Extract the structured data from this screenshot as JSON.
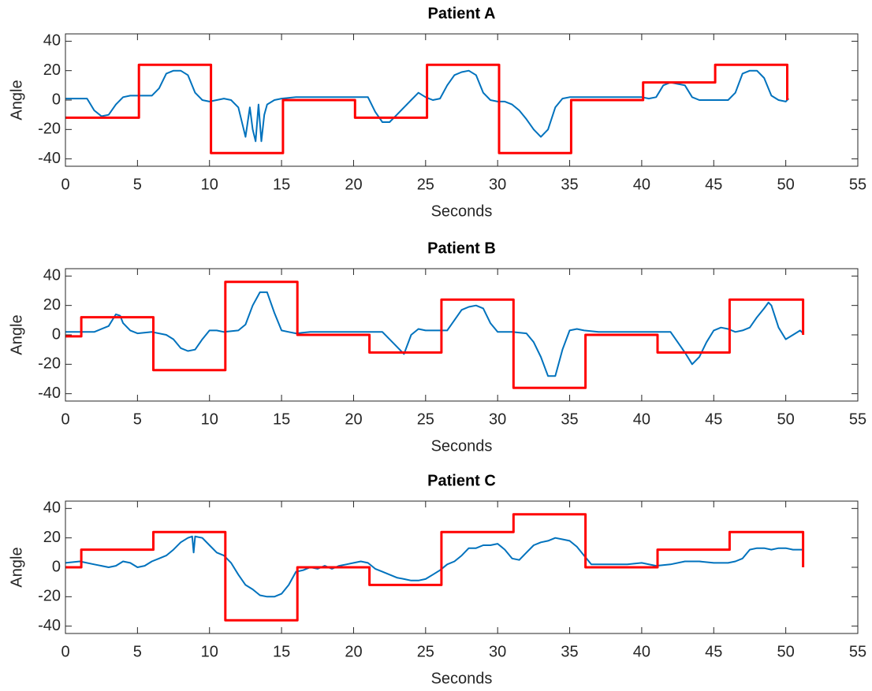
{
  "chart_data": [
    {
      "type": "line",
      "title": "Patient A",
      "xlabel": "Seconds",
      "ylabel": "Angle",
      "xlim": [
        0,
        55
      ],
      "ylim": [
        -45,
        45
      ],
      "xticks": [
        0,
        5,
        10,
        15,
        20,
        25,
        30,
        35,
        40,
        45,
        50,
        55
      ],
      "yticks": [
        -40,
        -20,
        0,
        20,
        40
      ],
      "series": [
        {
          "color": "#0072bd",
          "x": [
            0,
            0.5,
            1,
            1.5,
            2,
            2.5,
            3,
            3.5,
            4,
            4.5,
            5,
            5.5,
            6,
            6.5,
            7,
            7.5,
            8,
            8.5,
            9,
            9.5,
            10,
            10.5,
            11,
            11.5,
            12,
            12.5,
            12.8,
            13,
            13.2,
            13.4,
            13.6,
            13.8,
            14,
            14.5,
            15,
            16,
            17,
            18,
            19,
            20,
            21,
            21.5,
            22,
            22.5,
            23,
            23.5,
            24,
            24.5,
            25,
            25.5,
            26,
            26.5,
            27,
            27.5,
            28,
            28.5,
            29,
            29.5,
            30,
            30.5,
            31,
            31.5,
            32,
            32.5,
            33,
            33.5,
            34,
            34.5,
            35,
            36,
            37,
            38,
            39,
            40,
            40.5,
            41,
            41.5,
            42,
            42.5,
            43,
            43.5,
            44,
            45,
            46,
            46.5,
            47,
            47.5,
            48,
            48.5,
            49,
            49.5,
            50,
            50.2
          ],
          "values": [
            1,
            1,
            1,
            1,
            -7,
            -11,
            -10,
            -3,
            2,
            3,
            3,
            3,
            3,
            8,
            18,
            20,
            20,
            17,
            5,
            0,
            -1,
            0,
            1,
            0,
            -5,
            -25,
            -5,
            -20,
            -28,
            -3,
            -28,
            -10,
            -3,
            0,
            1,
            2,
            2,
            2,
            2,
            2,
            2,
            -8,
            -15,
            -15,
            -10,
            -5,
            0,
            5,
            2,
            0,
            1,
            10,
            17,
            19,
            20,
            17,
            5,
            0,
            -1,
            -1,
            -3,
            -7,
            -13,
            -20,
            -25,
            -20,
            -5,
            1,
            2,
            2,
            2,
            2,
            2,
            2,
            1,
            2,
            10,
            12,
            11,
            10,
            2,
            0,
            0,
            0,
            5,
            18,
            20,
            20,
            15,
            3,
            0,
            -1,
            1
          ]
        },
        {
          "color": "#ff0000",
          "x": [
            0,
            5.1,
            5.1,
            10.1,
            10.1,
            15.1,
            15.1,
            20.1,
            20.1,
            25.1,
            25.1,
            30.1,
            30.1,
            35.1,
            35.1,
            40.1,
            40.1,
            45.1,
            45.1,
            50.1,
            50.1
          ],
          "values": [
            -12,
            -12,
            24,
            24,
            -36,
            -36,
            0,
            0,
            -12,
            -12,
            24,
            24,
            -36,
            -36,
            0,
            0,
            12,
            12,
            24,
            24,
            0
          ]
        }
      ]
    },
    {
      "type": "line",
      "title": "Patient B",
      "xlabel": "Seconds",
      "ylabel": "Angle",
      "xlim": [
        0,
        55
      ],
      "ylim": [
        -45,
        45
      ],
      "xticks": [
        0,
        5,
        10,
        15,
        20,
        25,
        30,
        35,
        40,
        45,
        50,
        55
      ],
      "yticks": [
        -40,
        -20,
        0,
        20,
        40
      ],
      "series": [
        {
          "color": "#0072bd",
          "x": [
            0,
            1,
            2,
            3,
            3.5,
            3.8,
            4,
            4.5,
            5,
            6,
            7,
            7.5,
            8,
            8.5,
            9,
            9.5,
            10,
            10.5,
            11,
            12,
            12.5,
            13,
            13.5,
            14,
            14.5,
            15,
            15.5,
            16,
            17,
            18,
            19,
            20,
            21,
            22,
            22.5,
            23,
            23.5,
            24,
            24.5,
            25,
            26,
            26.5,
            27,
            27.5,
            28,
            28.5,
            29,
            29.5,
            30,
            31,
            32,
            32.5,
            33,
            33.5,
            34,
            34.5,
            35,
            35.5,
            36,
            37,
            38,
            39,
            40,
            41,
            42,
            42.5,
            43,
            43.5,
            44,
            44.5,
            45,
            45.5,
            46,
            46.5,
            47,
            47.5,
            48,
            48.5,
            48.8,
            49,
            49.5,
            50,
            50.5,
            51,
            51.2
          ],
          "values": [
            2,
            2,
            2,
            6,
            14,
            13,
            8,
            3,
            1,
            2,
            0,
            -3,
            -9,
            -11,
            -10,
            -3,
            3,
            3,
            2,
            3,
            7,
            20,
            29,
            29,
            15,
            3,
            2,
            1,
            2,
            2,
            2,
            2,
            2,
            2,
            -3,
            -8,
            -13,
            0,
            4,
            3,
            3,
            3,
            10,
            17,
            19,
            20,
            18,
            8,
            2,
            2,
            1,
            -5,
            -15,
            -28,
            -28,
            -10,
            3,
            4,
            3,
            2,
            2,
            2,
            2,
            2,
            2,
            -5,
            -12,
            -20,
            -15,
            -5,
            3,
            5,
            4,
            2,
            3,
            5,
            12,
            18,
            22,
            20,
            5,
            -3,
            0,
            3,
            1
          ]
        },
        {
          "color": "#ff0000",
          "x": [
            0,
            1.1,
            1.1,
            6.1,
            6.1,
            11.1,
            11.1,
            16.1,
            16.1,
            21.1,
            21.1,
            26.1,
            26.1,
            31.1,
            31.1,
            36.1,
            36.1,
            41.1,
            41.1,
            46.1,
            46.1,
            51.2,
            51.2
          ],
          "values": [
            -1,
            -1,
            12,
            12,
            -24,
            -24,
            36,
            36,
            0,
            0,
            -12,
            -12,
            24,
            24,
            -36,
            -36,
            0,
            0,
            -12,
            -12,
            24,
            24,
            0
          ]
        }
      ]
    },
    {
      "type": "line",
      "title": "Patient C",
      "xlabel": "Seconds",
      "ylabel": "Angle",
      "xlim": [
        0,
        55
      ],
      "ylim": [
        -45,
        45
      ],
      "xticks": [
        0,
        5,
        10,
        15,
        20,
        25,
        30,
        35,
        40,
        45,
        50,
        55
      ],
      "yticks": [
        -40,
        -20,
        0,
        20,
        40
      ],
      "series": [
        {
          "color": "#0072bd",
          "x": [
            0,
            1,
            2,
            3,
            3.5,
            4,
            4.5,
            5,
            5.5,
            6,
            6.5,
            7,
            7.5,
            8,
            8.5,
            8.8,
            8.9,
            9,
            9.5,
            10,
            10.5,
            11,
            11.5,
            12,
            12.5,
            13,
            13.5,
            14,
            14.5,
            15,
            15.5,
            16,
            16.5,
            17,
            17.5,
            18,
            18.5,
            19,
            19.5,
            20,
            20.5,
            21,
            21.5,
            22,
            22.5,
            23,
            23.5,
            24,
            24.5,
            25,
            25.5,
            26,
            26.5,
            27,
            27.5,
            28,
            28.5,
            29,
            29.5,
            30,
            30.5,
            31,
            31.5,
            32,
            32.5,
            33,
            33.5,
            34,
            34.5,
            35,
            35.5,
            36,
            36.5,
            37,
            38,
            39,
            40,
            41,
            42,
            43,
            44,
            45,
            46,
            46.5,
            47,
            47.5,
            48,
            48.5,
            49,
            49.5,
            50,
            50.5,
            51,
            51.2
          ],
          "values": [
            3,
            4,
            2,
            0,
            1,
            4,
            3,
            0,
            1,
            4,
            6,
            8,
            12,
            17,
            20,
            21,
            10,
            21,
            20,
            15,
            10,
            8,
            3,
            -5,
            -12,
            -15,
            -19,
            -20,
            -20,
            -18,
            -12,
            -3,
            -2,
            0,
            -1,
            1,
            -1,
            1,
            2,
            3,
            4,
            3,
            -1,
            -3,
            -5,
            -7,
            -8,
            -9,
            -9,
            -8,
            -5,
            -2,
            2,
            4,
            8,
            13,
            13,
            15,
            15,
            16,
            12,
            6,
            5,
            10,
            15,
            17,
            18,
            20,
            19,
            18,
            14,
            8,
            2,
            2,
            2,
            2,
            3,
            1,
            2,
            4,
            4,
            3,
            3,
            4,
            6,
            12,
            13,
            13,
            12,
            13,
            13,
            12,
            12,
            12
          ]
        },
        {
          "color": "#ff0000",
          "x": [
            0,
            1.1,
            1.1,
            6.1,
            6.1,
            11.1,
            11.1,
            16.1,
            16.1,
            21.1,
            21.1,
            26.1,
            26.1,
            31.1,
            31.1,
            36.1,
            36.1,
            41.1,
            41.1,
            46.1,
            46.1,
            51.2,
            51.2
          ],
          "values": [
            0,
            0,
            12,
            12,
            24,
            24,
            -36,
            -36,
            0,
            0,
            -12,
            -12,
            24,
            24,
            36,
            36,
            0,
            0,
            12,
            12,
            24,
            24,
            0
          ]
        }
      ]
    }
  ]
}
